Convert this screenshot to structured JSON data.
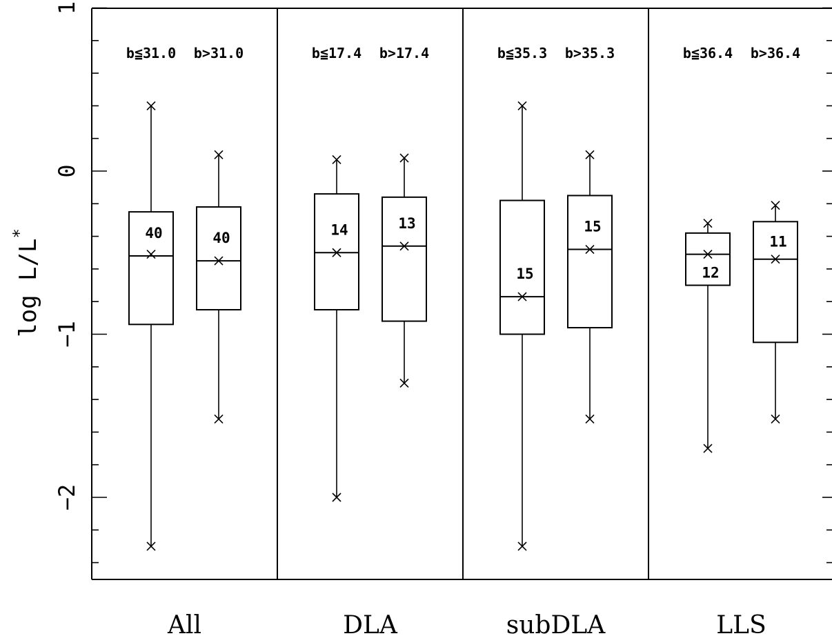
{
  "chart_data": {
    "type": "box",
    "ylabel": "log L/L",
    "ylabel_superscript": "*",
    "ylim": [
      -2.5,
      1.0
    ],
    "yticks": [
      {
        "value": 1,
        "label": "1"
      },
      {
        "value": 0,
        "label": "0"
      },
      {
        "value": -1,
        "label": "−1"
      },
      {
        "value": -2,
        "label": "−2"
      }
    ],
    "yminor_step": 0.2,
    "groups": [
      {
        "name": "All",
        "boxes": [
          {
            "label": "b≦31.0",
            "n": "40",
            "min": -2.3,
            "q1": -0.94,
            "median": -0.52,
            "q3": -0.25,
            "max": 0.4,
            "mean": -0.51
          },
          {
            "label": "b>31.0",
            "n": "40",
            "min": -1.52,
            "q1": -0.85,
            "median": -0.55,
            "q3": -0.22,
            "max": 0.1,
            "mean": -0.55
          }
        ]
      },
      {
        "name": "DLA",
        "boxes": [
          {
            "label": "b≦17.4",
            "n": "14",
            "min": -2.0,
            "q1": -0.85,
            "median": -0.5,
            "q3": -0.14,
            "max": 0.07,
            "mean": -0.5
          },
          {
            "label": "b>17.4",
            "n": "13",
            "min": -1.3,
            "q1": -0.92,
            "median": -0.46,
            "q3": -0.16,
            "max": 0.08,
            "mean": -0.46
          }
        ]
      },
      {
        "name": "subDLA",
        "boxes": [
          {
            "label": "b≦35.3",
            "n": "15",
            "min": -2.3,
            "q1": -1.0,
            "median": -0.77,
            "q3": -0.18,
            "max": 0.4,
            "mean": -0.77
          },
          {
            "label": "b>35.3",
            "n": "15",
            "min": -1.52,
            "q1": -0.96,
            "median": -0.48,
            "q3": -0.15,
            "max": 0.1,
            "mean": -0.48
          }
        ]
      },
      {
        "name": "LLS",
        "boxes": [
          {
            "label": "b≦36.4",
            "n": "12",
            "min": -1.7,
            "q1": -0.7,
            "median": -0.51,
            "q3": -0.38,
            "max": -0.32,
            "mean": -0.51
          },
          {
            "label": "b>36.4",
            "n": "11",
            "min": -1.52,
            "q1": -1.05,
            "median": -0.54,
            "q3": -0.31,
            "max": -0.21,
            "mean": -0.54
          }
        ]
      }
    ]
  }
}
